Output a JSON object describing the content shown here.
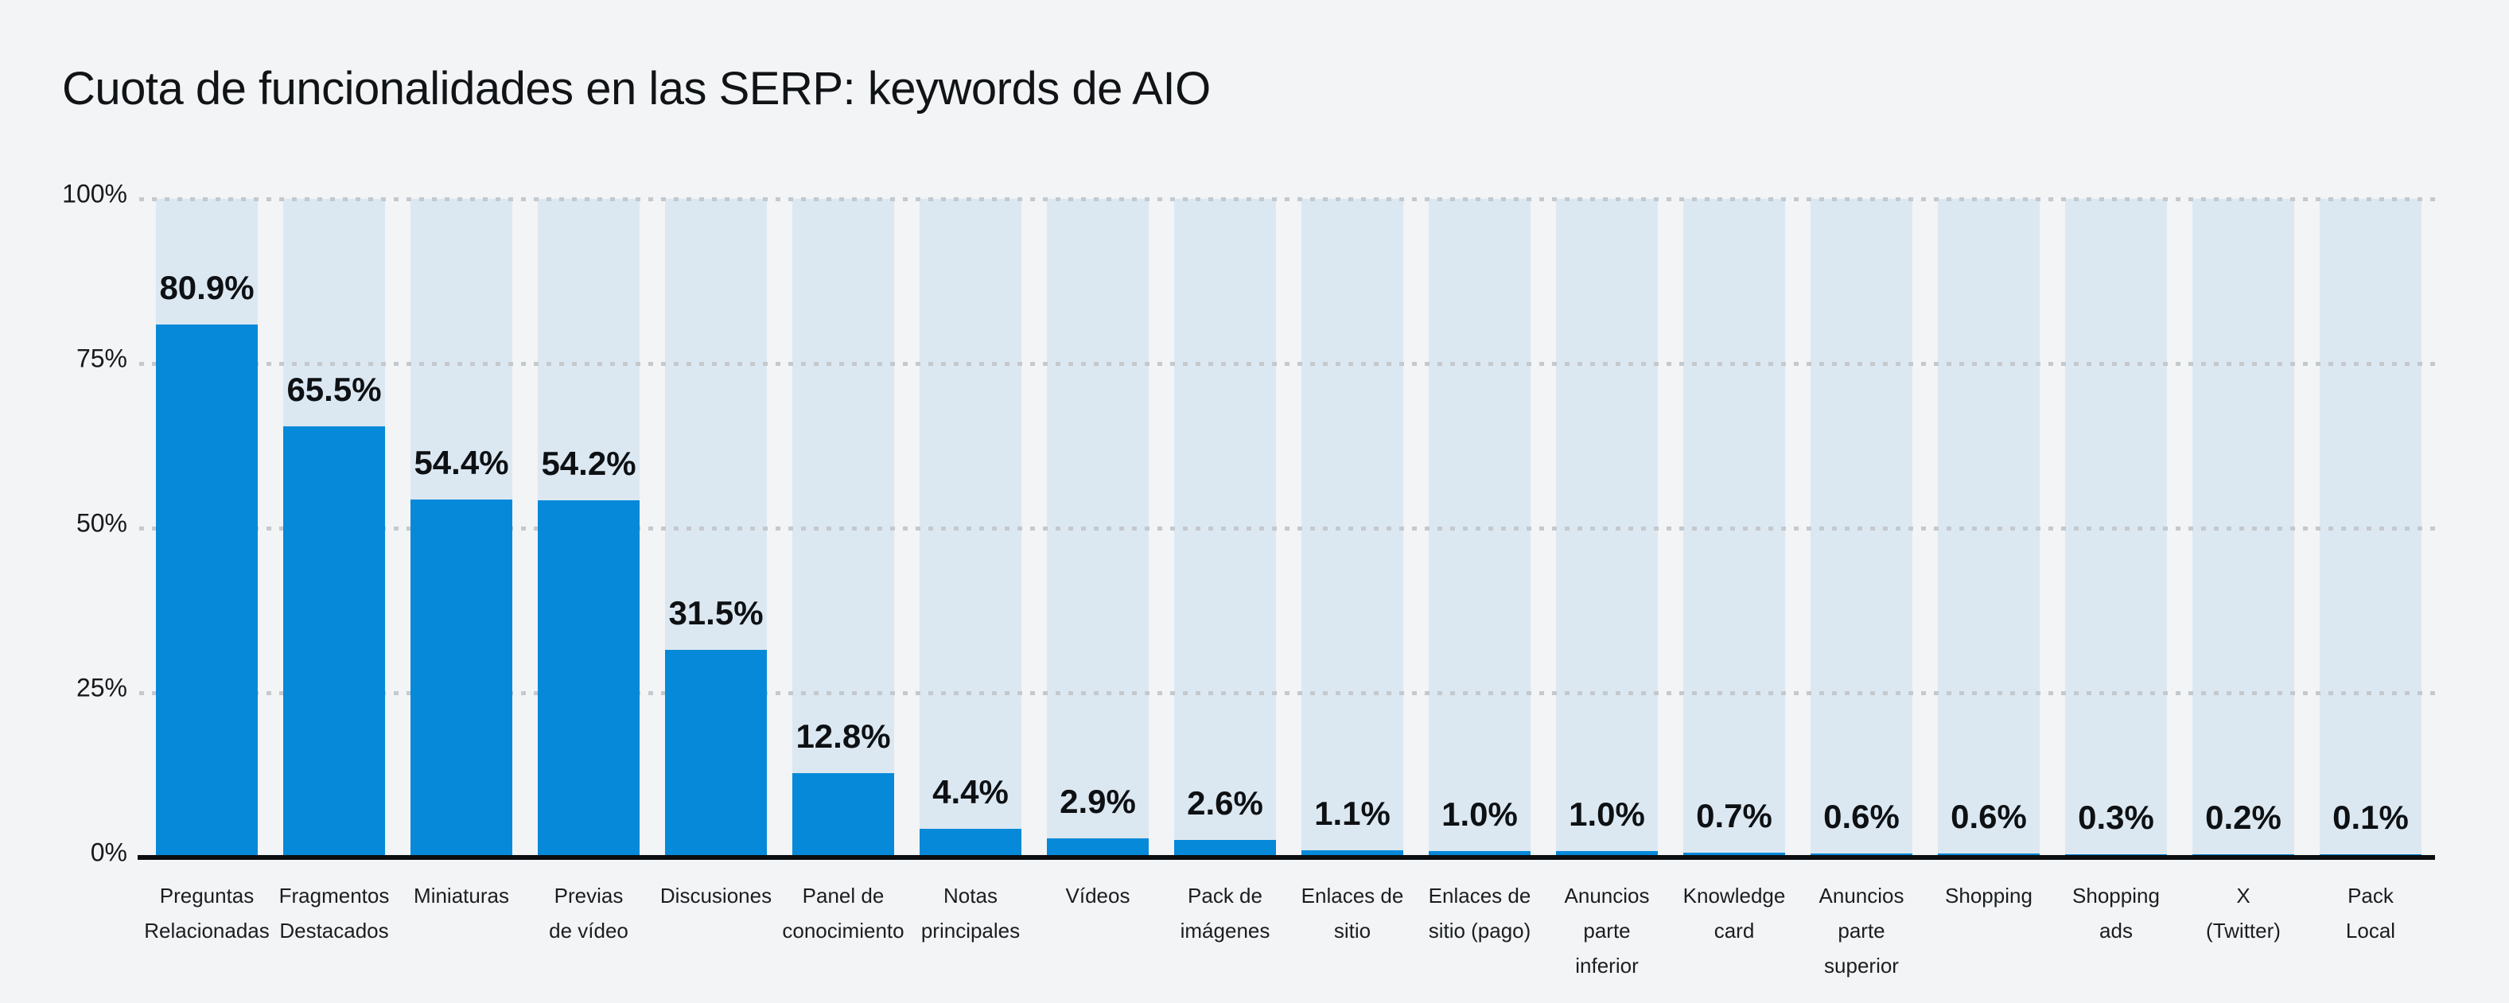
{
  "chart_data": {
    "type": "bar",
    "title": "Cuota de funcionalidades en las SERP: keywords de AIO",
    "categories": [
      "Preguntas Relacionadas",
      "Fragmentos Destacados",
      "Miniaturas",
      "Previas de vídeo",
      "Discusiones",
      "Panel de conocimiento",
      "Notas principales",
      "Vídeos",
      "Pack de imágenes",
      "Enlaces de sitio",
      "Enlaces de sitio (pago)",
      "Anuncios parte inferior",
      "Knowledge card",
      "Anuncios parte superior",
      "Shopping",
      "Shopping ads",
      "X (Twitter)",
      "Pack Local"
    ],
    "category_display_lines": [
      [
        "Preguntas",
        "Relacionadas"
      ],
      [
        "Fragmentos",
        "Destacados"
      ],
      [
        "Miniaturas"
      ],
      [
        "Previas",
        "de vídeo"
      ],
      [
        "Discusiones"
      ],
      [
        "Panel de",
        "conocimiento"
      ],
      [
        "Notas",
        "principales"
      ],
      [
        "Vídeos"
      ],
      [
        "Pack de",
        "imágenes"
      ],
      [
        "Enlaces de",
        "sitio"
      ],
      [
        "Enlaces de",
        "sitio (pago)"
      ],
      [
        "Anuncios",
        "parte",
        "inferior"
      ],
      [
        "Knowledge",
        "card"
      ],
      [
        "Anuncios",
        "parte",
        "superior"
      ],
      [
        "Shopping"
      ],
      [
        "Shopping",
        "ads"
      ],
      [
        "X",
        "(Twitter)"
      ],
      [
        "Pack",
        "Local"
      ]
    ],
    "values": [
      80.9,
      65.5,
      54.4,
      54.2,
      31.5,
      12.8,
      4.4,
      2.9,
      2.6,
      1.1,
      1.0,
      1.0,
      0.7,
      0.6,
      0.6,
      0.3,
      0.2,
      0.1
    ],
    "value_labels": [
      "80.9%",
      "65.5%",
      "54.4%",
      "54.2%",
      "31.5%",
      "12.8%",
      "4.4%",
      "2.9%",
      "2.6%",
      "1.1%",
      "1.0%",
      "1.0%",
      "0.7%",
      "0.6%",
      "0.6%",
      "0.3%",
      "0.2%",
      "0.1%"
    ],
    "xlabel": "",
    "ylabel": "",
    "ylim": [
      0,
      100
    ],
    "yticks": [
      {
        "value": 100,
        "label": "100%"
      },
      {
        "value": 75,
        "label": "75%"
      },
      {
        "value": 50,
        "label": "50%"
      },
      {
        "value": 25,
        "label": "25%"
      },
      {
        "value": 0,
        "label": "0%"
      }
    ],
    "grid": "horizontal-dotted",
    "legend": "none",
    "colors": {
      "background": "#f2f4f5",
      "bar": "#0689d9",
      "track": "#dce8f1",
      "grid_dot": "#c4c9ce",
      "axis_line": "#0b0e11"
    }
  }
}
